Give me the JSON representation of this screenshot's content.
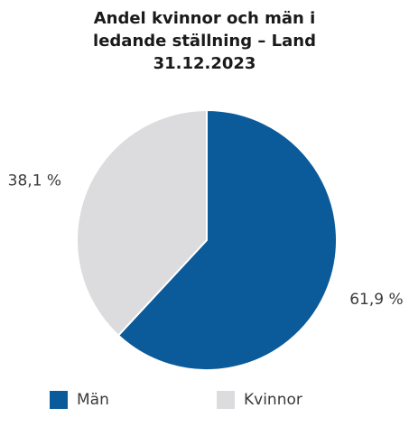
{
  "chart_data": {
    "type": "pie",
    "title_lines": [
      "Andel kvinnor och män i",
      "ledande ställning – Land",
      "31.12.2023"
    ],
    "categories": [
      "Män",
      "Kvinnor"
    ],
    "values": [
      61.9,
      38.1
    ],
    "value_labels": [
      "61,9 %",
      "38,1 %"
    ],
    "colors": [
      "#0b5a9a",
      "#dcdcde"
    ],
    "start_angle_deg": 0,
    "direction": "clockwise",
    "legend_position": "bottom"
  }
}
